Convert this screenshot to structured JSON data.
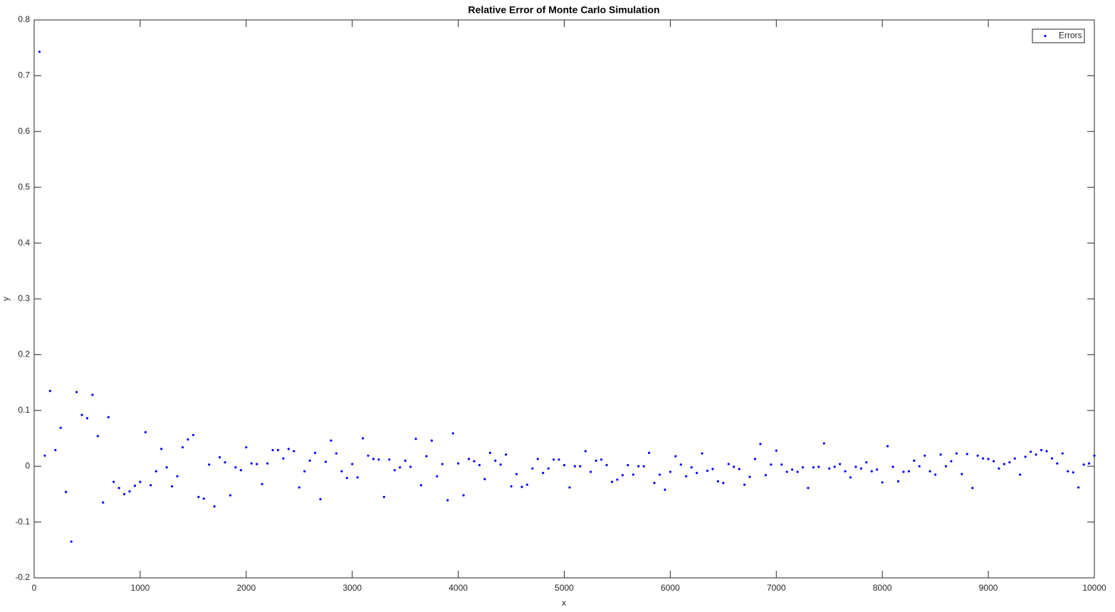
{
  "chart_data": {
    "type": "scatter",
    "title": "Relative Error of Monte Carlo Simulation",
    "x_label": "x",
    "y_label": "y",
    "xlim": [
      0,
      10000
    ],
    "xticks": [
      0,
      1000,
      2000,
      3000,
      4000,
      5000,
      6000,
      7000,
      8000,
      9000,
      10000
    ],
    "ylim": [
      -0.2,
      0.8
    ],
    "yticks": [
      -0.2,
      -0.1,
      0,
      0.1,
      0.2,
      0.3,
      0.4,
      0.5,
      0.6,
      0.7,
      0.8
    ],
    "legend": "top-right",
    "series": [
      {
        "name": "Errors",
        "color": "#0000ff",
        "x": [
          50,
          100,
          150,
          200,
          250,
          300,
          350,
          400,
          450,
          500,
          550,
          600,
          650,
          700,
          750,
          800,
          850,
          900,
          950,
          1000,
          1050,
          1100,
          1150,
          1200,
          1250,
          1300,
          1350,
          1400,
          1450,
          1500,
          1550,
          1600,
          1650,
          1700,
          1750,
          1800,
          1850,
          1900,
          1950,
          2000,
          2050,
          2100,
          2150,
          2200,
          2250,
          2300,
          2350,
          2400,
          2450,
          2500,
          2550,
          2600,
          2650,
          2700,
          2750,
          2800,
          2850,
          2900,
          2950,
          3000,
          3050,
          3100,
          3150,
          3200,
          3250,
          3300,
          3350,
          3400,
          3450,
          3500,
          3550,
          3600,
          3650,
          3700,
          3750,
          3800,
          3850,
          3900,
          3950,
          4000,
          4050,
          4100,
          4150,
          4200,
          4250,
          4300,
          4350,
          4400,
          4450,
          4500,
          4550,
          4600,
          4650,
          4700,
          4750,
          4800,
          4850,
          4900,
          4950,
          5000,
          5050,
          5100,
          5150,
          5200,
          5250,
          5300,
          5350,
          5400,
          5450,
          5500,
          5550,
          5600,
          5650,
          5700,
          5750,
          5800,
          5850,
          5900,
          5950,
          6000,
          6050,
          6100,
          6150,
          6200,
          6250,
          6300,
          6350,
          6400,
          6450,
          6500,
          6550,
          6600,
          6650,
          6700,
          6750,
          6800,
          6850,
          6900,
          6950,
          7000,
          7050,
          7100,
          7150,
          7200,
          7250,
          7300,
          7350,
          7400,
          7450,
          7500,
          7550,
          7600,
          7650,
          7700,
          7750,
          7800,
          7850,
          7900,
          7950,
          8000,
          8050,
          8100,
          8150,
          8200,
          8250,
          8300,
          8350,
          8400,
          8450,
          8500,
          8550,
          8600,
          8650,
          8700,
          8750,
          8800,
          8850,
          8900,
          8950,
          9000,
          9050,
          9100,
          9150,
          9200,
          9250,
          9300,
          9350,
          9400,
          9450,
          9500,
          9550,
          9600,
          9650,
          9700,
          9750,
          9800,
          9850,
          9900,
          9950,
          10000
        ],
        "values": [
          0.743,
          0.019,
          0.135,
          0.029,
          0.069,
          -0.046,
          -0.135,
          0.133,
          0.092,
          0.086,
          0.128,
          0.054,
          -0.065,
          0.088,
          -0.028,
          -0.039,
          -0.05,
          -0.045,
          -0.035,
          -0.028,
          0.061,
          -0.034,
          -0.009,
          0.031,
          -0.002,
          -0.036,
          -0.018,
          0.034,
          0.048,
          0.056,
          -0.055,
          -0.058,
          0.003,
          -0.072,
          0.016,
          0.007,
          -0.052,
          -0.002,
          -0.007,
          0.034,
          0.005,
          0.004,
          -0.032,
          0.005,
          0.029,
          0.029,
          0.014,
          0.031,
          0.027,
          -0.038,
          -0.009,
          0.01,
          0.024,
          -0.059,
          0.008,
          0.046,
          0.023,
          -0.009,
          -0.021,
          0.004,
          -0.02,
          0.05,
          0.019,
          0.013,
          0.012,
          -0.055,
          0.012,
          -0.007,
          -0.002,
          0.01,
          -0.001,
          0.049,
          -0.034,
          0.018,
          0.046,
          -0.018,
          0.004,
          -0.061,
          0.059,
          0.005,
          -0.052,
          0.013,
          0.009,
          0.002,
          -0.023,
          0.024,
          0.01,
          0.003,
          0.021,
          -0.036,
          -0.014,
          -0.037,
          -0.033,
          -0.004,
          0.013,
          -0.012,
          -0.004,
          0.012,
          0.012,
          0.002,
          -0.038,
          0,
          0,
          0.027,
          -0.01,
          0.01,
          0.012,
          0.002,
          -0.028,
          -0.024,
          -0.016,
          0.002,
          -0.015,
          0,
          0,
          0.024,
          -0.03,
          -0.015,
          -0.042,
          -0.01,
          0.018,
          0.003,
          -0.018,
          -0.002,
          -0.012,
          0.023,
          -0.008,
          -0.005,
          -0.027,
          -0.03,
          0.004,
          -0.001,
          -0.005,
          -0.033,
          -0.019,
          0.013,
          0.04,
          -0.016,
          0.003,
          0.028,
          0.003,
          -0.01,
          -0.006,
          -0.01,
          -0.002,
          -0.039,
          -0.002,
          -0.001,
          0.041,
          -0.004,
          -0.001,
          0.004,
          -0.009,
          -0.02,
          -0.001,
          -0.004,
          0.007,
          -0.009,
          -0.006,
          -0.029,
          0.036,
          -0.001,
          -0.027,
          -0.01,
          -0.009,
          0.01,
          0,
          0.019,
          -0.009,
          -0.015,
          0.021,
          0,
          0.009,
          0.023,
          -0.014,
          0.022,
          -0.039,
          0.019,
          0.014,
          0.013,
          0.009,
          -0.004,
          0.004,
          0.007,
          0.014,
          -0.015,
          0.017,
          0.026,
          0.021,
          0.029,
          0.027,
          0.014,
          0.005,
          0.023,
          -0.009,
          -0.011,
          -0.038,
          0.003,
          0.005,
          0.019
        ]
      }
    ]
  }
}
